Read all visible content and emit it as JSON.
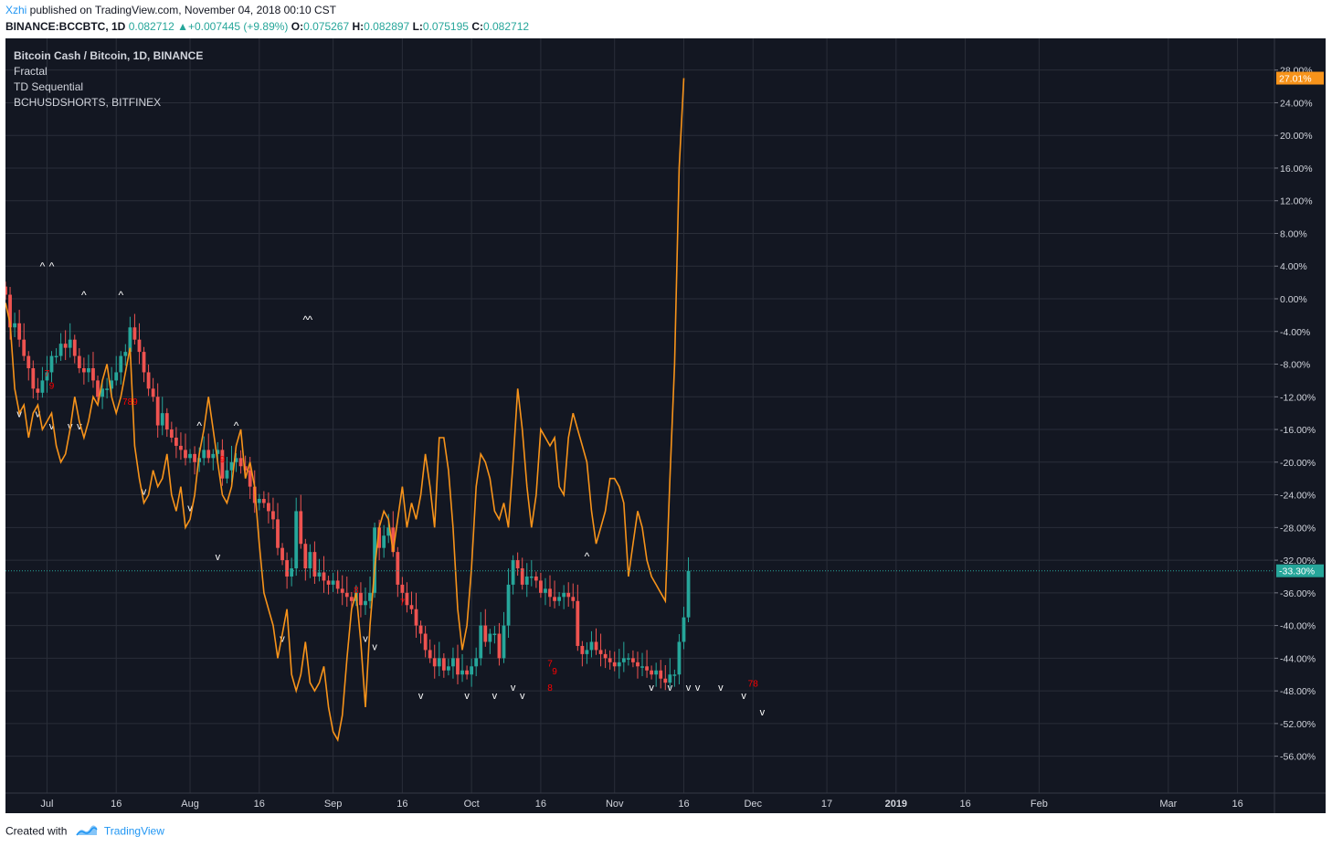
{
  "header": {
    "author": "Xzhi",
    "published": " published on TradingView.com, November 04, 2018 00:10 CST"
  },
  "ohlc": {
    "symbol": "BINANCE:BCCBTC, 1D",
    "last": "0.082712",
    "change_arrow": "▲",
    "change": "+0.007445 (+9.89%)",
    "o_label": "O:",
    "o": "0.075267",
    "h_label": "H:",
    "h": "0.082897",
    "l_label": "L:",
    "l": "0.075195",
    "c_label": "C:",
    "c": "0.082712"
  },
  "legend": {
    "title": "Bitcoin Cash / Bitcoin, 1D, BINANCE",
    "indicators": [
      "Fractal",
      "TD Sequential",
      "BCHUSDSHORTS, BITFINEX"
    ]
  },
  "footer": {
    "created_with": "Created with",
    "brand": "TradingView"
  },
  "colors": {
    "background": "#131722",
    "grid": "#2a2e39",
    "up": "#26a69a",
    "down": "#ef5350",
    "shorts_line": "#f7931a",
    "td_text": "#ff0000",
    "fractal": "#ffffff",
    "price_line": "#26a69a"
  },
  "chart_data": {
    "type": "candlestick",
    "title": "Bitcoin Cash / Bitcoin, 1D, BINANCE",
    "y_axis": {
      "unit": "%",
      "ticks": [
        "28.00%",
        "24.00%",
        "20.00%",
        "16.00%",
        "12.00%",
        "8.00%",
        "4.00%",
        "0.00%",
        "-4.00%",
        "-8.00%",
        "-12.00%",
        "-16.00%",
        "-20.00%",
        "-24.00%",
        "-28.00%",
        "-32.00%",
        "-36.00%",
        "-40.00%",
        "-44.00%",
        "-48.00%",
        "-52.00%",
        "-56.00%"
      ],
      "range": [
        -58,
        30
      ]
    },
    "x_axis": {
      "ticks": [
        "Jul",
        "16",
        "Aug",
        "16",
        "Sep",
        "16",
        "Oct",
        "16",
        "Nov",
        "16",
        "Dec",
        "17",
        "2019",
        "16",
        "Feb",
        "Mar",
        "16"
      ],
      "range": [
        "2018-06-22",
        "2019-03-24"
      ]
    },
    "markers": {
      "price_label": "-33.30%",
      "price_value": -33.3,
      "shorts_label": "27.01%",
      "shorts_value": 27.01
    },
    "candles": {
      "start_date": "2018-06-22",
      "closes": [
        0.5,
        -3.5,
        -3,
        -5,
        -7,
        -8.5,
        -11,
        -11.5,
        -10,
        -9,
        -7,
        -7,
        -5.5,
        -6,
        -5,
        -7,
        -8.5,
        -9,
        -8.5,
        -10,
        -12,
        -11,
        -11,
        -10,
        -9,
        -7,
        -6.5,
        -3.5,
        -5,
        -6.5,
        -9,
        -11,
        -12,
        -15.5,
        -14,
        -16,
        -17,
        -18,
        -18.5,
        -19.5,
        -19,
        -20,
        -19.5,
        -18.5,
        -19.5,
        -19,
        -18.5,
        -22,
        -21,
        -20,
        -19.5,
        -20.5,
        -21,
        -23,
        -25,
        -24.5,
        -25,
        -26,
        -27,
        -30.5,
        -32,
        -34,
        -33,
        -26,
        -30,
        -33,
        -31,
        -34,
        -33.5,
        -34.5,
        -35,
        -34.5,
        -35.5,
        -36,
        -36.5,
        -37,
        -36,
        -37.5,
        -37,
        -36,
        -28,
        -30.5,
        -29,
        -28,
        -31,
        -35,
        -36,
        -37.5,
        -38,
        -40,
        -41,
        -43,
        -44,
        -45,
        -44,
        -45.5,
        -45,
        -44,
        -46,
        -45.5,
        -46,
        -45,
        -44,
        -40,
        -42,
        -41,
        -41,
        -44,
        -40,
        -35,
        -32,
        -33,
        -35,
        -34,
        -34,
        -34.5,
        -36,
        -35.5,
        -36.5,
        -37,
        -36.5,
        -36,
        -36.5,
        -37,
        -42.5,
        -43.5,
        -43,
        -42,
        -43,
        -43.5,
        -44,
        -44.5,
        -45,
        -44.5,
        -44,
        -44,
        -44.5,
        -45,
        -45,
        -45.5,
        -46,
        -45.5,
        -46.5,
        -47,
        -46,
        -46,
        -42,
        -39,
        -33.3
      ]
    },
    "shorts_series": {
      "name": "BCHUSDSHORTS, BITFINEX",
      "start_date": "2018-06-22",
      "values": [
        -0.5,
        -3,
        -11,
        -14,
        -13,
        -17,
        -14,
        -13,
        -16,
        -15,
        -14,
        -18,
        -20,
        -19,
        -16,
        -12,
        -15,
        -17,
        -15,
        -12,
        -13,
        -10,
        -8,
        -12,
        -14,
        -12,
        -9,
        -6,
        -18,
        -22,
        -25,
        -24,
        -21,
        -23,
        -22,
        -19,
        -24,
        -26,
        -23,
        -28,
        -27,
        -24,
        -19,
        -16,
        -12,
        -16,
        -20,
        -24,
        -25,
        -23,
        -18,
        -16,
        -22,
        -20,
        -23,
        -30,
        -36,
        -38,
        -40,
        -44,
        -41,
        -38,
        -46,
        -48,
        -46,
        -42,
        -47,
        -48,
        -47,
        -45,
        -50,
        -53,
        -54,
        -51,
        -44,
        -38,
        -36,
        -42,
        -50,
        -40,
        -33,
        -28,
        -26,
        -27,
        -31,
        -27,
        -23,
        -28,
        -25,
        -27,
        -24,
        -19,
        -23,
        -28,
        -17,
        -17,
        -21,
        -28,
        -38,
        -43,
        -40,
        -33,
        -23,
        -19,
        -20,
        -22,
        -26,
        -27,
        -25,
        -28,
        -20,
        -11,
        -16,
        -23,
        -28,
        -24,
        -16,
        -17,
        -18,
        -17,
        -23,
        -24,
        -17,
        -14,
        -16,
        -18,
        -20,
        -26,
        -30,
        -28,
        -26,
        -22,
        -22,
        -23,
        -25,
        -34,
        -30,
        -26,
        -28,
        -32,
        -34,
        -35,
        -36,
        -37,
        -22,
        -8,
        16,
        27.01
      ]
    }
  }
}
